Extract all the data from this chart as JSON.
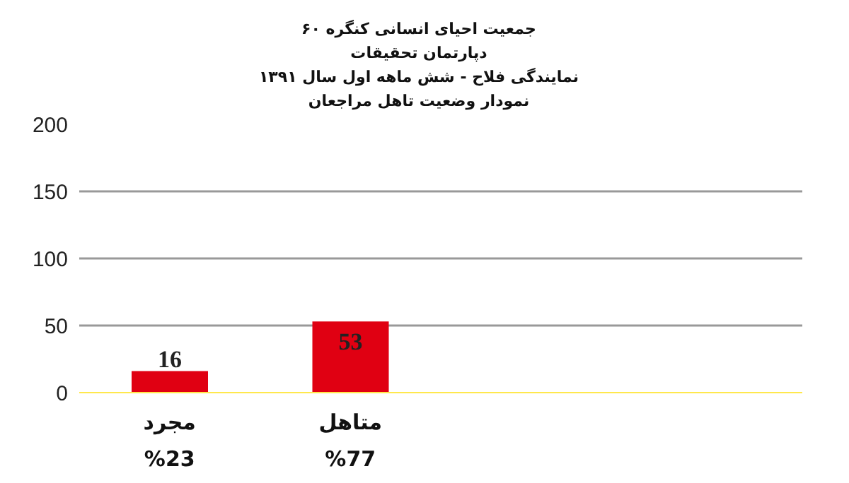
{
  "chart_data": {
    "type": "bar",
    "title": "جمعیت احیای انسانی کنگره ۶۰",
    "subtitle": "دپارتمان تحقیقات\nنمایندگی فلاح  - شش ماهه اول سال ۱۳۹۱\nنمودار وضعیت تاهل مراجعان",
    "categories": [
      "مجرد\n%23",
      "متاهل\n%77",
      null,
      null
    ],
    "values": [
      16,
      53,
      null,
      null
    ],
    "color": "#e00012",
    "ylim": [
      0,
      200
    ],
    "yticks": [
      0,
      50,
      100,
      150,
      200
    ],
    "grid": "y",
    "data_labels": true
  }
}
